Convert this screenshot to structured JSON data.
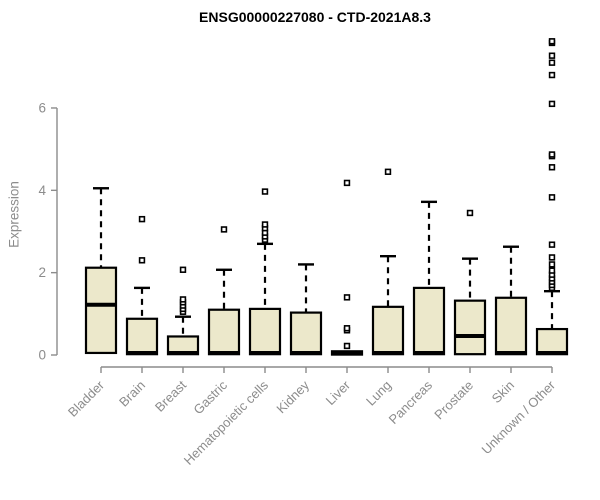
{
  "title": "ENSG00000227080 - CTD-2021A8.3",
  "colors": {
    "box_fill": "#ECE8CB",
    "box_stroke": "#000000",
    "axis": "#8C8C8C",
    "title_text": "#000000",
    "background": "#FFFFFF"
  },
  "chart_data": {
    "type": "boxplot",
    "title": "ENSG00000227080 - CTD-2021A8.3",
    "xlabel": "",
    "ylabel": "Expression",
    "ylim": [
      0,
      7.8
    ],
    "yticks": [
      0,
      2,
      4,
      6
    ],
    "grid": false,
    "legend": "none",
    "categories": [
      "Bladder",
      "Brain",
      "Breast",
      "Gastric",
      "Hematopoietic cells",
      "Kidney",
      "Liver",
      "Lung",
      "Pancreas",
      "Prostate",
      "Skin",
      "Unknown / Other"
    ],
    "boxes": [
      {
        "category": "Bladder",
        "low": 0.05,
        "q1": 0.05,
        "median": 1.22,
        "q3": 2.12,
        "high": 4.05,
        "outliers": []
      },
      {
        "category": "Brain",
        "low": 0.02,
        "q1": 0.02,
        "median": 0.05,
        "q3": 0.88,
        "high": 1.63,
        "outliers": [
          2.3,
          3.3
        ]
      },
      {
        "category": "Breast",
        "low": 0.02,
        "q1": 0.02,
        "median": 0.05,
        "q3": 0.45,
        "high": 0.93,
        "outliers": [
          1.05,
          1.12,
          1.2,
          1.28,
          1.35,
          2.07
        ]
      },
      {
        "category": "Gastric",
        "low": 0.02,
        "q1": 0.02,
        "median": 0.05,
        "q3": 1.1,
        "high": 2.07,
        "outliers": [
          3.05
        ]
      },
      {
        "category": "Hematopoietic cells",
        "low": 0.02,
        "q1": 0.02,
        "median": 0.05,
        "q3": 1.12,
        "high": 2.7,
        "outliers": [
          2.8,
          2.88,
          2.97,
          3.08,
          3.17,
          3.97
        ]
      },
      {
        "category": "Kidney",
        "low": 0.02,
        "q1": 0.02,
        "median": 0.05,
        "q3": 1.03,
        "high": 2.2,
        "outliers": []
      },
      {
        "category": "Liver",
        "low": 0.01,
        "q1": 0.01,
        "median": 0.04,
        "q3": 0.09,
        "high": 0.09,
        "outliers": [
          0.22,
          0.6,
          0.65,
          1.4,
          4.18
        ]
      },
      {
        "category": "Lung",
        "low": 0.02,
        "q1": 0.02,
        "median": 0.05,
        "q3": 1.17,
        "high": 2.4,
        "outliers": [
          4.45
        ]
      },
      {
        "category": "Pancreas",
        "low": 0.02,
        "q1": 0.02,
        "median": 0.05,
        "q3": 1.63,
        "high": 3.72,
        "outliers": []
      },
      {
        "category": "Prostate",
        "low": 0.02,
        "q1": 0.02,
        "median": 0.46,
        "q3": 1.32,
        "high": 2.34,
        "outliers": [
          3.45
        ]
      },
      {
        "category": "Skin",
        "low": 0.02,
        "q1": 0.02,
        "median": 0.05,
        "q3": 1.39,
        "high": 2.63,
        "outliers": []
      },
      {
        "category": "Unknown / Other",
        "low": 0.02,
        "q1": 0.02,
        "median": 0.05,
        "q3": 0.63,
        "high": 1.55,
        "outliers": [
          1.63,
          1.7,
          1.78,
          1.86,
          1.95,
          2.05,
          2.2,
          2.37,
          2.68,
          3.83,
          4.56,
          4.83,
          4.87,
          6.1,
          6.8,
          7.1,
          7.27,
          7.58,
          7.62
        ]
      }
    ]
  }
}
